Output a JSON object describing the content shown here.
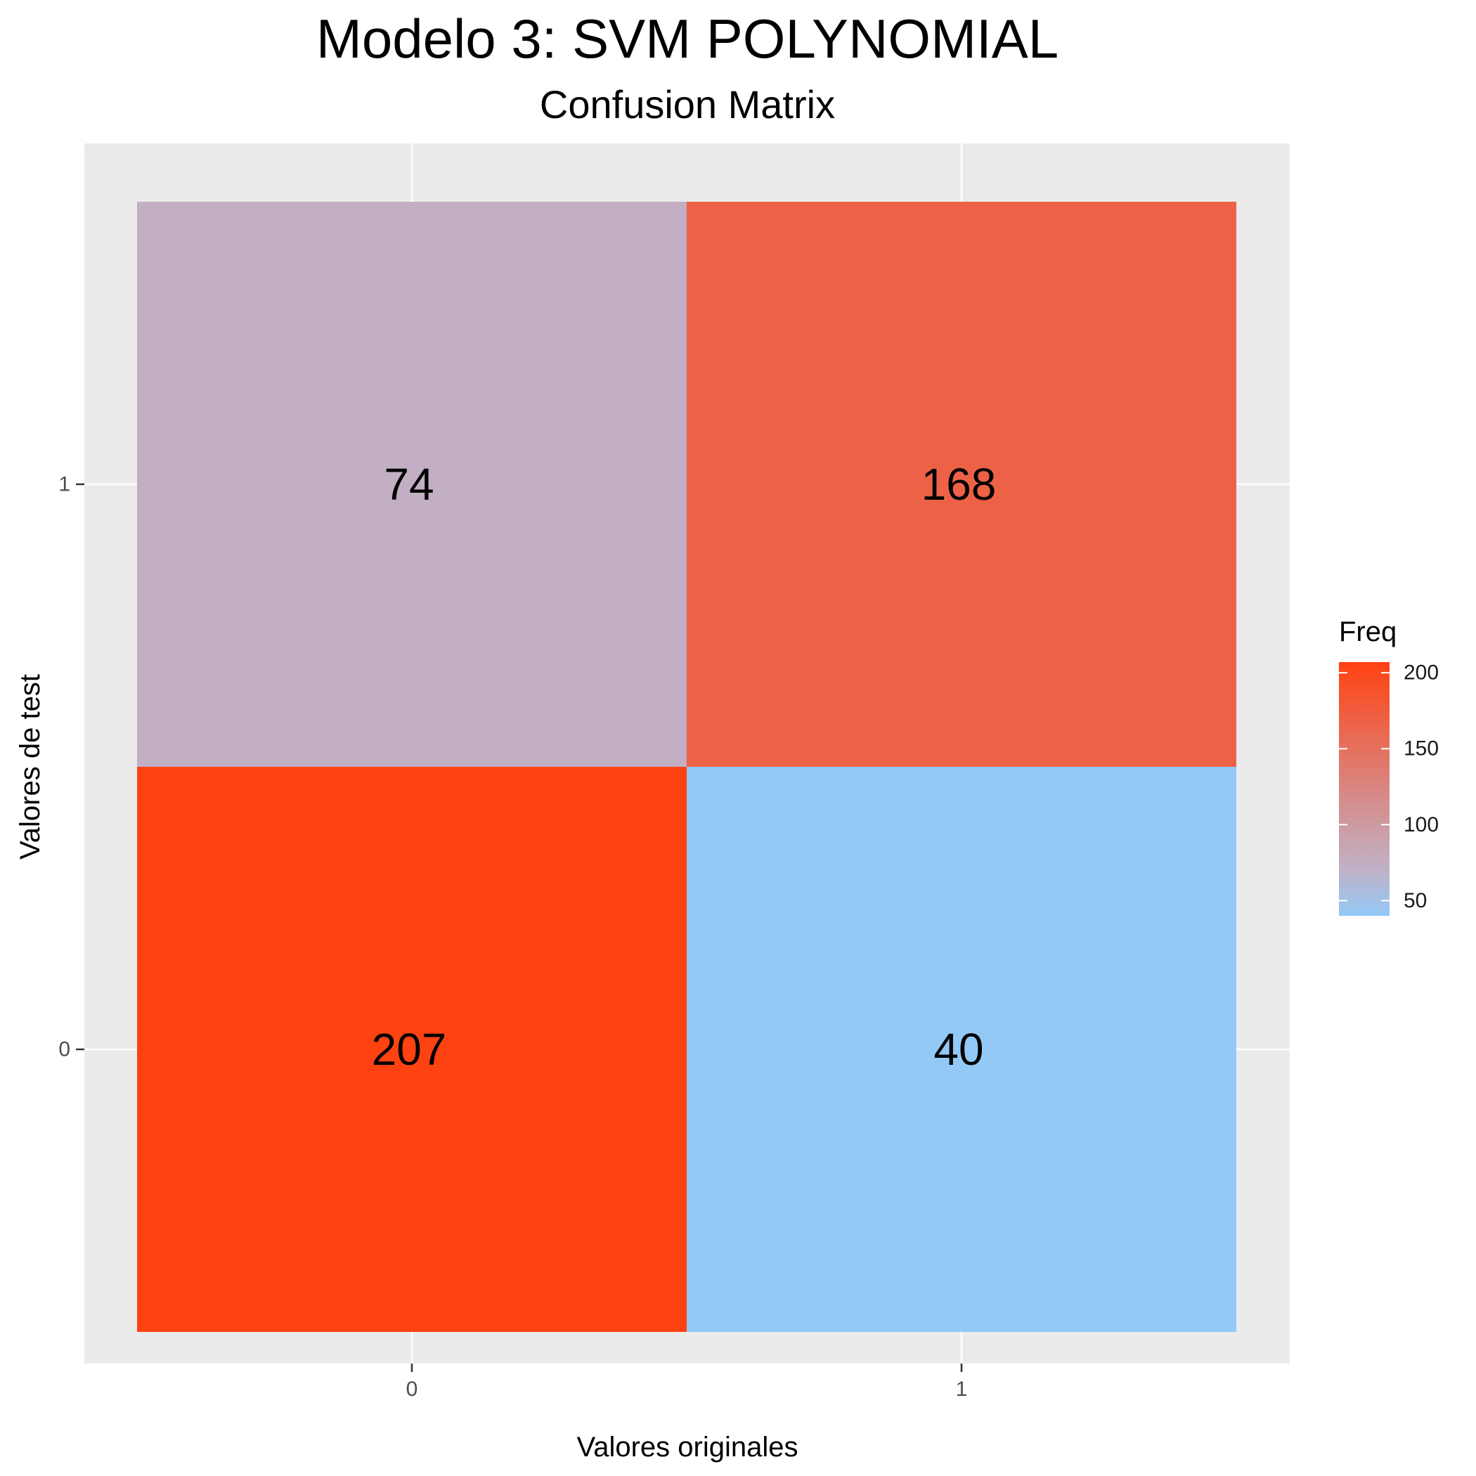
{
  "chart_data": {
    "type": "heatmap",
    "title": "Modelo 3: SVM POLYNOMIAL",
    "subtitle": "Confusion Matrix",
    "xlabel": "Valores originales",
    "ylabel": "Valores de test",
    "x_categories": [
      "0",
      "1"
    ],
    "y_categories": [
      "0",
      "1"
    ],
    "cells": [
      {
        "x": "0",
        "y": "1",
        "value": 74
      },
      {
        "x": "1",
        "y": "1",
        "value": 168
      },
      {
        "x": "0",
        "y": "0",
        "value": 207
      },
      {
        "x": "1",
        "y": "0",
        "value": 40
      }
    ],
    "legend": {
      "title": "Freq",
      "placement": "right",
      "ticks": [
        200,
        150,
        100,
        50
      ],
      "min": 40,
      "max": 207,
      "colors": {
        "low": "#93c9f7",
        "mid": "#c0b2c8",
        "high": "#ff4212"
      }
    },
    "panel_background": "#ebebeb",
    "grid": true
  }
}
